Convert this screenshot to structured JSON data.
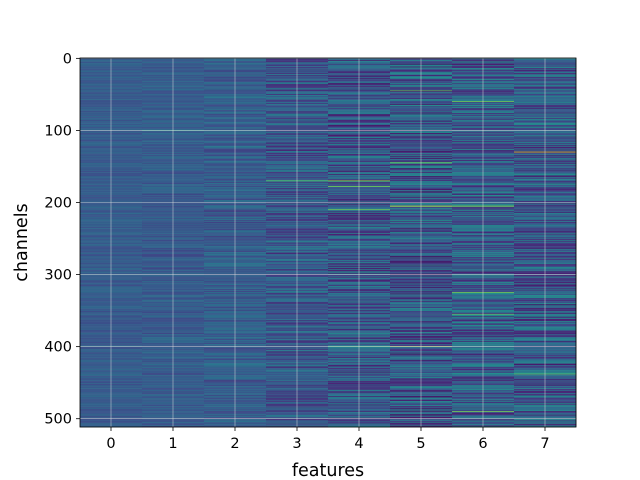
{
  "chart_data": {
    "type": "heatmap",
    "title": "",
    "xlabel": "features",
    "ylabel": "channels",
    "x_ticks": [
      0,
      1,
      2,
      3,
      4,
      5,
      6,
      7
    ],
    "y_ticks": [
      0,
      100,
      200,
      300,
      400,
      500
    ],
    "xlim": [
      -0.5,
      7.5
    ],
    "ylim": [
      511.5,
      -0.5
    ],
    "n_rows": 512,
    "n_cols": 8,
    "colormap": "viridis",
    "grid": true,
    "grid_color": "#dddddd",
    "column_variation": [
      0.06,
      0.07,
      0.1,
      0.15,
      0.19,
      0.22,
      0.2,
      0.2
    ],
    "column_base": [
      0.29,
      0.29,
      0.3,
      0.28,
      0.27,
      0.27,
      0.3,
      0.29
    ],
    "highlights": [
      {
        "col": 1,
        "row": 100,
        "value": 0.55
      },
      {
        "col": 4,
        "row": 100,
        "value": 0.05
      },
      {
        "col": 3,
        "row": 170,
        "value": 0.75
      },
      {
        "col": 4,
        "row": 170,
        "value": 0.85
      },
      {
        "col": 4,
        "row": 178,
        "value": 0.8
      },
      {
        "col": 4,
        "row": 210,
        "value": 0.8
      },
      {
        "col": 5,
        "row": 45,
        "value": 0.75
      },
      {
        "col": 5,
        "row": 145,
        "value": 0.8
      },
      {
        "col": 5,
        "row": 205,
        "value": 0.95
      },
      {
        "col": 5,
        "row": 400,
        "value": 0.9
      },
      {
        "col": 5,
        "row": 8,
        "value": 0.0
      },
      {
        "col": 6,
        "row": 60,
        "value": 0.8
      },
      {
        "col": 6,
        "row": 205,
        "value": 0.85
      },
      {
        "col": 6,
        "row": 325,
        "value": 0.8
      },
      {
        "col": 6,
        "row": 355,
        "value": 0.75
      },
      {
        "col": 6,
        "row": 490,
        "value": 0.8
      },
      {
        "col": 7,
        "row": 130,
        "value": 0.95
      },
      {
        "col": 7,
        "row": 342,
        "value": 0.02
      },
      {
        "col": 7,
        "row": 438,
        "value": 0.75
      },
      {
        "col": 4,
        "row": 400,
        "value": 0.7
      }
    ]
  }
}
